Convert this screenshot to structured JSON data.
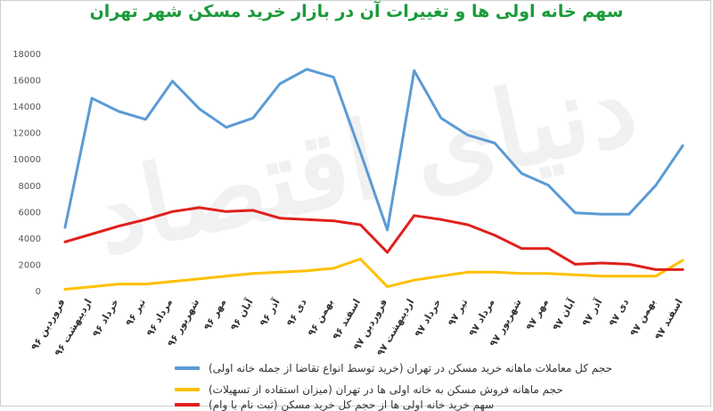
{
  "title": "سهم خانه اولی ها و تغییرات آن در بازار خرید مسکن شهر تهران",
  "watermark": "دنیای اقتصاد",
  "chart_data": {
    "type": "line",
    "ylim": [
      0,
      18000
    ],
    "yticks": [
      "0",
      "2000",
      "4000",
      "6000",
      "8000",
      "10000",
      "12000",
      "14000",
      "16000",
      "18000"
    ],
    "grid": false,
    "legend_position": "bottom",
    "categories": [
      "فروردین ۹۶",
      "اردیبهشت ۹۶",
      "خرداد ۹۶",
      "تیر ۹۶",
      "مرداد ۹۶",
      "شهریور ۹۶",
      "مهر ۹۶",
      "آبان ۹۶",
      "آذر ۹۶",
      "دی ۹۶",
      "بهمن ۹۶",
      "اسفند ۹۶",
      "فروردین ۹۷",
      "اردیبهشت ۹۷",
      "خرداد ۹۷",
      "تیر ۹۷",
      "مرداد ۹۷",
      "شهریور ۹۷",
      "مهر ۹۷",
      "آبان ۹۷",
      "آذر ۹۷",
      "دی ۹۷",
      "بهمن ۹۷",
      "اسفند ۹۷"
    ],
    "series": [
      {
        "name": "حجم کل معاملات ماهانه خرید مسکن در تهران (خرید توسط انواع تقاضا از جمله خانه اولی)",
        "color": "#5b9bd5",
        "values": [
          4800,
          14600,
          13600,
          13000,
          15900,
          13800,
          12400,
          13100,
          15700,
          16800,
          16200,
          10500,
          4600,
          16700,
          13100,
          11800,
          11200,
          8900,
          8000,
          5900,
          5800,
          5800,
          8000,
          11000
        ]
      },
      {
        "name": "حجم ماهانه فروش مسکن به خانه اولی ها در تهران (میزان استفاده از تسهیلات)",
        "color": "#ffc000",
        "values": [
          100,
          300,
          500,
          500,
          700,
          900,
          1100,
          1300,
          1400,
          1500,
          1700,
          2400,
          300,
          800,
          1100,
          1400,
          1400,
          1300,
          1300,
          1200,
          1100,
          1100,
          1100,
          2300
        ]
      },
      {
        "name": "سهم خرید خانه اولی ها از حجم کل خرید مسکن (ثبت نام با وام)",
        "color": "#e0201c",
        "values": [
          3700,
          4300,
          4900,
          5400,
          6000,
          6300,
          6000,
          6100,
          5500,
          5400,
          5300,
          5000,
          2900,
          5700,
          5400,
          5000,
          4200,
          3200,
          3200,
          2000,
          2100,
          2000,
          1600,
          1600
        ]
      }
    ]
  }
}
